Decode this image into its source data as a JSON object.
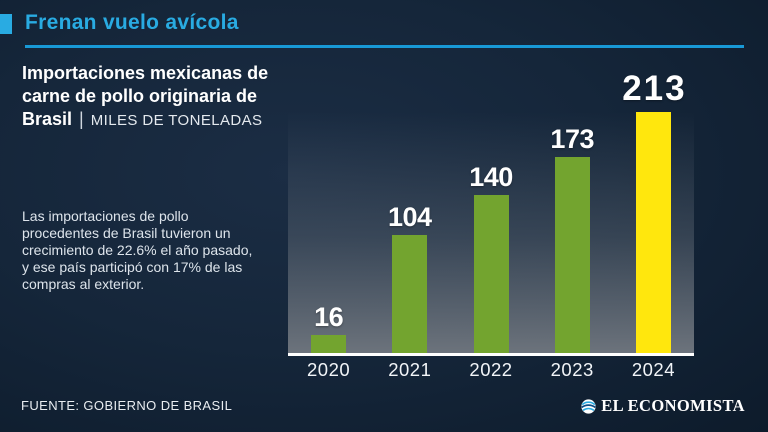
{
  "page": {
    "background": "#15263a",
    "accent": "#29abe2"
  },
  "header": {
    "title": "Frenan vuelo avícola"
  },
  "left": {
    "subtitle_bold": "Importaciones mexicanas de carne de pollo originaria de Brasil",
    "subtitle_separator": "|",
    "subtitle_unit": "MILES DE TONELADAS",
    "body": "Las importaciones de pollo procedentes de Brasil tuvieron un crecimiento de 22.6% el año pasado, y ese país participó con 17% de las compras al exterior."
  },
  "chart_data": {
    "type": "bar",
    "title": "Importaciones mexicanas de carne de pollo originaria de Brasil",
    "ylabel": "MILES DE TONELADAS",
    "xlabel": "",
    "categories": [
      "2020",
      "2021",
      "2022",
      "2023",
      "2024"
    ],
    "values": [
      16,
      104,
      140,
      173,
      213
    ],
    "ylim": [
      0,
      213
    ],
    "grid": false,
    "legend": "none",
    "bar_color": "#73a42f",
    "highlight_color": "#ffe70d",
    "highlight_index": 4,
    "value_labels": "above bars, white; 2024 value emphasized larger"
  },
  "footer": {
    "source": "FUENTE: GOBIERNO DE BRASIL",
    "brand": "EL ECONOMISTA"
  }
}
